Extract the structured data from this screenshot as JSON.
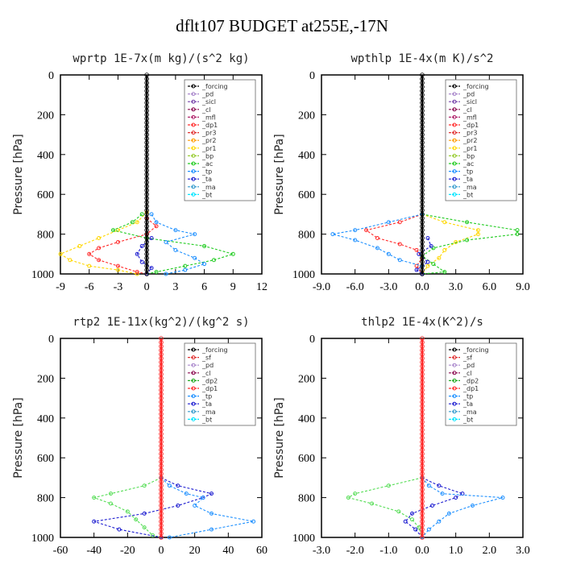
{
  "title": "dflt107  BUDGET at255E,-17N",
  "chart_data": [
    {
      "type": "line",
      "title": "wprtp   1E-7x(m kg)/(s^2 kg)",
      "ylabel": "Pressure [hPa]",
      "xlabel": "",
      "xlim": [
        -9,
        12
      ],
      "xticks": [
        -9,
        -6,
        -3,
        0,
        3,
        6,
        9,
        12
      ],
      "xtick_labels": [
        "-9",
        "-6",
        "-3",
        "0",
        "3",
        "6",
        "9",
        "12"
      ],
      "ylim": [
        0,
        1000
      ],
      "yticks": [
        0,
        200,
        400,
        600,
        800,
        1000
      ],
      "legend": [
        "_forcing",
        "_pd",
        "_sicl",
        "_cl",
        "_mfl",
        "_dp1",
        "_pr3",
        "_pr2",
        "_pr1",
        "_bp",
        "_ac",
        "_tp",
        "_ta",
        "_ma",
        "_bt"
      ],
      "series": [
        {
          "name": "_pr1",
          "color": "#ffd700",
          "p": [
            690,
            740,
            780,
            820,
            860,
            900,
            930,
            960,
            980,
            1000
          ],
          "x": [
            0,
            -1,
            -3,
            -5,
            -7,
            -9,
            -8,
            -6,
            -3,
            -1
          ]
        },
        {
          "name": "_pr3",
          "color": "#ff2a2a",
          "p": [
            720,
            760,
            800,
            840,
            870,
            900,
            930,
            960,
            990,
            1000
          ],
          "x": [
            0,
            1,
            0,
            -3,
            -5,
            -6,
            -5,
            -3,
            -1,
            0
          ]
        },
        {
          "name": "_ac",
          "color": "#22cc22",
          "p": [
            700,
            740,
            780,
            820,
            860,
            900,
            930,
            960,
            990,
            1000
          ],
          "x": [
            -0.5,
            -1.5,
            -3.5,
            0,
            6,
            9,
            7,
            4,
            1,
            0
          ]
        },
        {
          "name": "_tp",
          "color": "#1e90ff",
          "p": [
            700,
            740,
            780,
            800,
            840,
            880,
            920,
            950,
            980,
            1000
          ],
          "x": [
            0.5,
            1,
            3,
            5,
            2,
            3,
            5,
            6,
            4,
            2
          ]
        },
        {
          "name": "_ta",
          "color": "#1c1cd0",
          "p": [
            820,
            860,
            900,
            940,
            970,
            1000
          ],
          "x": [
            0.5,
            -0.5,
            -1,
            -0.5,
            0.5,
            0
          ]
        },
        {
          "name": "_forcing",
          "color": "#000000",
          "p": [
            0,
            1000
          ],
          "x": [
            0,
            0
          ]
        }
      ]
    },
    {
      "type": "line",
      "title": "wpthlp   1E-4x(m K)/s^2",
      "ylabel": "Pressure [hPa]",
      "xlabel": "",
      "xlim": [
        -9,
        9
      ],
      "xticks": [
        -9,
        -6,
        -3,
        0,
        3,
        6,
        9
      ],
      "xtick_labels": [
        "-9.0",
        "-6.0",
        "-3.0",
        "0.0",
        "3.0",
        "6.0",
        "9.0"
      ],
      "ylim": [
        0,
        1000
      ],
      "yticks": [
        0,
        200,
        400,
        600,
        800,
        1000
      ],
      "legend": [
        "_forcing",
        "_pd",
        "_sicl",
        "_cl",
        "_mfl",
        "_dp1",
        "_pr3",
        "_pr2",
        "_pr1",
        "_bp",
        "_ac",
        "_tp",
        "_ta",
        "_ma",
        "_bt"
      ],
      "series": [
        {
          "name": "_pr3",
          "color": "#ff2a2a",
          "p": [
            700,
            740,
            780,
            820,
            850,
            880,
            920,
            960,
            1000
          ],
          "x": [
            0,
            -2,
            -5,
            -4,
            -2,
            -0.5,
            0,
            -0.5,
            0
          ]
        },
        {
          "name": "_pr1",
          "color": "#ffd700",
          "p": [
            700,
            740,
            780,
            800,
            840,
            880,
            920,
            960,
            1000
          ],
          "x": [
            0,
            2,
            5,
            5,
            3,
            2,
            1.5,
            0.5,
            0
          ]
        },
        {
          "name": "_ac",
          "color": "#22cc22",
          "p": [
            700,
            740,
            780,
            800,
            830,
            870,
            910,
            950,
            990,
            1000
          ],
          "x": [
            0,
            4,
            8.5,
            8.5,
            4,
            1,
            0,
            1,
            2,
            0
          ]
        },
        {
          "name": "_tp",
          "color": "#1e90ff",
          "p": [
            700,
            740,
            780,
            800,
            830,
            870,
            900,
            930,
            960,
            1000
          ],
          "x": [
            0,
            -3,
            -6,
            -8,
            -6,
            -4,
            -3,
            -2,
            0,
            0
          ]
        },
        {
          "name": "_ta",
          "color": "#1c1cd0",
          "p": [
            820,
            860,
            900,
            940,
            980,
            1000
          ],
          "x": [
            0.5,
            0.8,
            -0.3,
            0.5,
            -0.5,
            0
          ]
        },
        {
          "name": "_forcing",
          "color": "#000000",
          "p": [
            0,
            1000
          ],
          "x": [
            0,
            0
          ]
        }
      ]
    },
    {
      "type": "line",
      "title": "rtp2   1E-11x(kg^2)/(kg^2 s)",
      "ylabel": "Pressure [hPa]",
      "xlabel": "",
      "xlim": [
        -60,
        60
      ],
      "xticks": [
        -60,
        -40,
        -20,
        0,
        20,
        40,
        60
      ],
      "xtick_labels": [
        "-60",
        "-40",
        "-20",
        "0",
        "20",
        "40",
        "60"
      ],
      "ylim": [
        0,
        1000
      ],
      "yticks": [
        0,
        200,
        400,
        600,
        800,
        1000
      ],
      "legend": [
        "_forcing",
        "_sf",
        "_pd",
        "_cl",
        "_dp2",
        "_dp1",
        "_tp",
        "_ta",
        "_ma",
        "_bt"
      ],
      "series": [
        {
          "name": "_dp1",
          "color": "#55dd55",
          "p": [
            700,
            740,
            780,
            800,
            830,
            870,
            910,
            950,
            990,
            1000
          ],
          "x": [
            0,
            -10,
            -30,
            -40,
            -30,
            -20,
            -15,
            -10,
            -5,
            0
          ]
        },
        {
          "name": "_ta",
          "color": "#1c1cd0",
          "p": [
            700,
            740,
            780,
            800,
            840,
            880,
            920,
            960,
            1000
          ],
          "x": [
            0,
            10,
            30,
            25,
            10,
            -10,
            -40,
            -25,
            0
          ]
        },
        {
          "name": "_tp",
          "color": "#1e90ff",
          "p": [
            700,
            740,
            780,
            800,
            840,
            880,
            920,
            960,
            1000
          ],
          "x": [
            0,
            5,
            15,
            25,
            20,
            30,
            55,
            30,
            5
          ]
        },
        {
          "name": "_forcing",
          "color": "#ff2a2a",
          "p": [
            0,
            1000
          ],
          "x": [
            0,
            0
          ]
        }
      ]
    },
    {
      "type": "line",
      "title": "thlp2   1E-4x(K^2)/s",
      "ylabel": "Pressure [hPa]",
      "xlabel": "",
      "xlim": [
        -3,
        3
      ],
      "xticks": [
        -3,
        -2,
        -1,
        0,
        1,
        2,
        3
      ],
      "xtick_labels": [
        "-3.0",
        "-2.0",
        "-1.0",
        "0.0",
        "1.0",
        "2.0",
        "3.0"
      ],
      "ylim": [
        0,
        1000
      ],
      "yticks": [
        0,
        200,
        400,
        600,
        800,
        1000
      ],
      "legend": [
        "_forcing",
        "_sf",
        "_pd",
        "_cl",
        "_dp2",
        "_dp1",
        "_tp",
        "_ta",
        "_ma",
        "_bt"
      ],
      "series": [
        {
          "name": "_dp1",
          "color": "#55dd55",
          "p": [
            700,
            740,
            780,
            800,
            830,
            870,
            910,
            950,
            1000
          ],
          "x": [
            0,
            -1,
            -2,
            -2.2,
            -1.5,
            -0.7,
            -0.3,
            -0.1,
            0
          ]
        },
        {
          "name": "_ta",
          "color": "#1c1cd0",
          "p": [
            700,
            740,
            780,
            800,
            840,
            880,
            920,
            960,
            1000
          ],
          "x": [
            0,
            0.5,
            1.2,
            1,
            0.3,
            -0.3,
            -0.5,
            -0.2,
            0
          ]
        },
        {
          "name": "_tp",
          "color": "#1e90ff",
          "p": [
            700,
            740,
            780,
            800,
            840,
            880,
            920,
            960,
            1000
          ],
          "x": [
            0,
            0.2,
            0.6,
            2.4,
            1.5,
            0.8,
            0.5,
            0.2,
            0
          ]
        },
        {
          "name": "_forcing",
          "color": "#ff2a2a",
          "p": [
            0,
            1000
          ],
          "x": [
            0,
            0
          ]
        }
      ]
    }
  ]
}
